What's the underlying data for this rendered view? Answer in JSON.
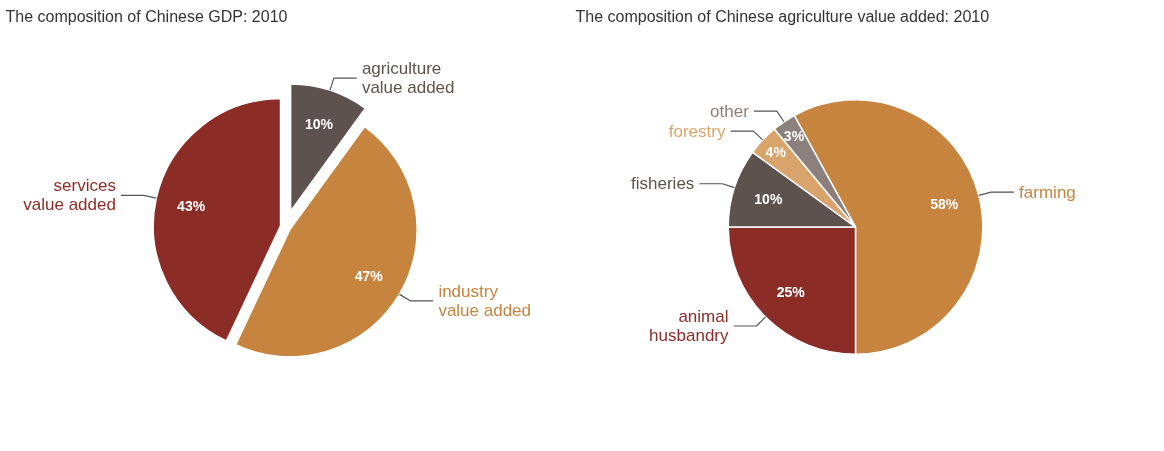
{
  "chart_data": [
    {
      "type": "pie",
      "title": "The composition of Chinese GDP: 2010",
      "categories": [
        "agriculture\nvalue added",
        "industry\nvalue added",
        "services\nvalue added"
      ],
      "values": [
        10,
        47,
        43
      ],
      "colors": [
        "#5e524e",
        "#c6843f",
        "#8b2d26"
      ],
      "value_labels": [
        "10%",
        "47%",
        "43%"
      ]
    },
    {
      "type": "pie",
      "title": "The composition of Chinese agriculture value added: 2010",
      "categories": [
        "farming",
        "animal\nhusbandry",
        "fisheries",
        "forestry",
        "other"
      ],
      "values": [
        58,
        25,
        10,
        4,
        3
      ],
      "colors": [
        "#c6843f",
        "#8b2d26",
        "#5e524e",
        "#d9a46c",
        "#8c807c"
      ],
      "value_labels": [
        "58%",
        "25%",
        "10%",
        "4%",
        "3%"
      ]
    }
  ]
}
